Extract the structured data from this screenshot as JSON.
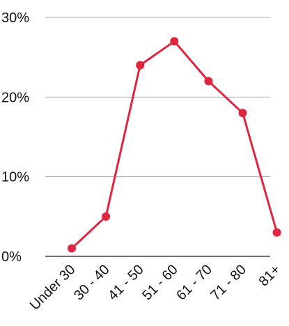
{
  "chart_data": {
    "type": "line",
    "title": "",
    "xlabel": "",
    "ylabel": "",
    "categories": [
      "Under 30",
      "30 - 40",
      "41 - 50",
      "51 - 60",
      "61 - 70",
      "71 - 80",
      "81+"
    ],
    "series": [
      {
        "values": [
          1,
          5,
          24,
          27,
          22,
          18,
          3
        ]
      }
    ],
    "ylim": [
      0,
      30
    ],
    "y_ticks": [
      {
        "value": 0,
        "label": "0%"
      },
      {
        "value": 10,
        "label": "10%"
      },
      {
        "value": 20,
        "label": "20%"
      },
      {
        "value": 30,
        "label": "30%"
      }
    ],
    "grid": true,
    "legend": "none",
    "colors": {
      "series": "#e0253f",
      "grid": "#aaaaaa",
      "axis": "#444444"
    }
  }
}
